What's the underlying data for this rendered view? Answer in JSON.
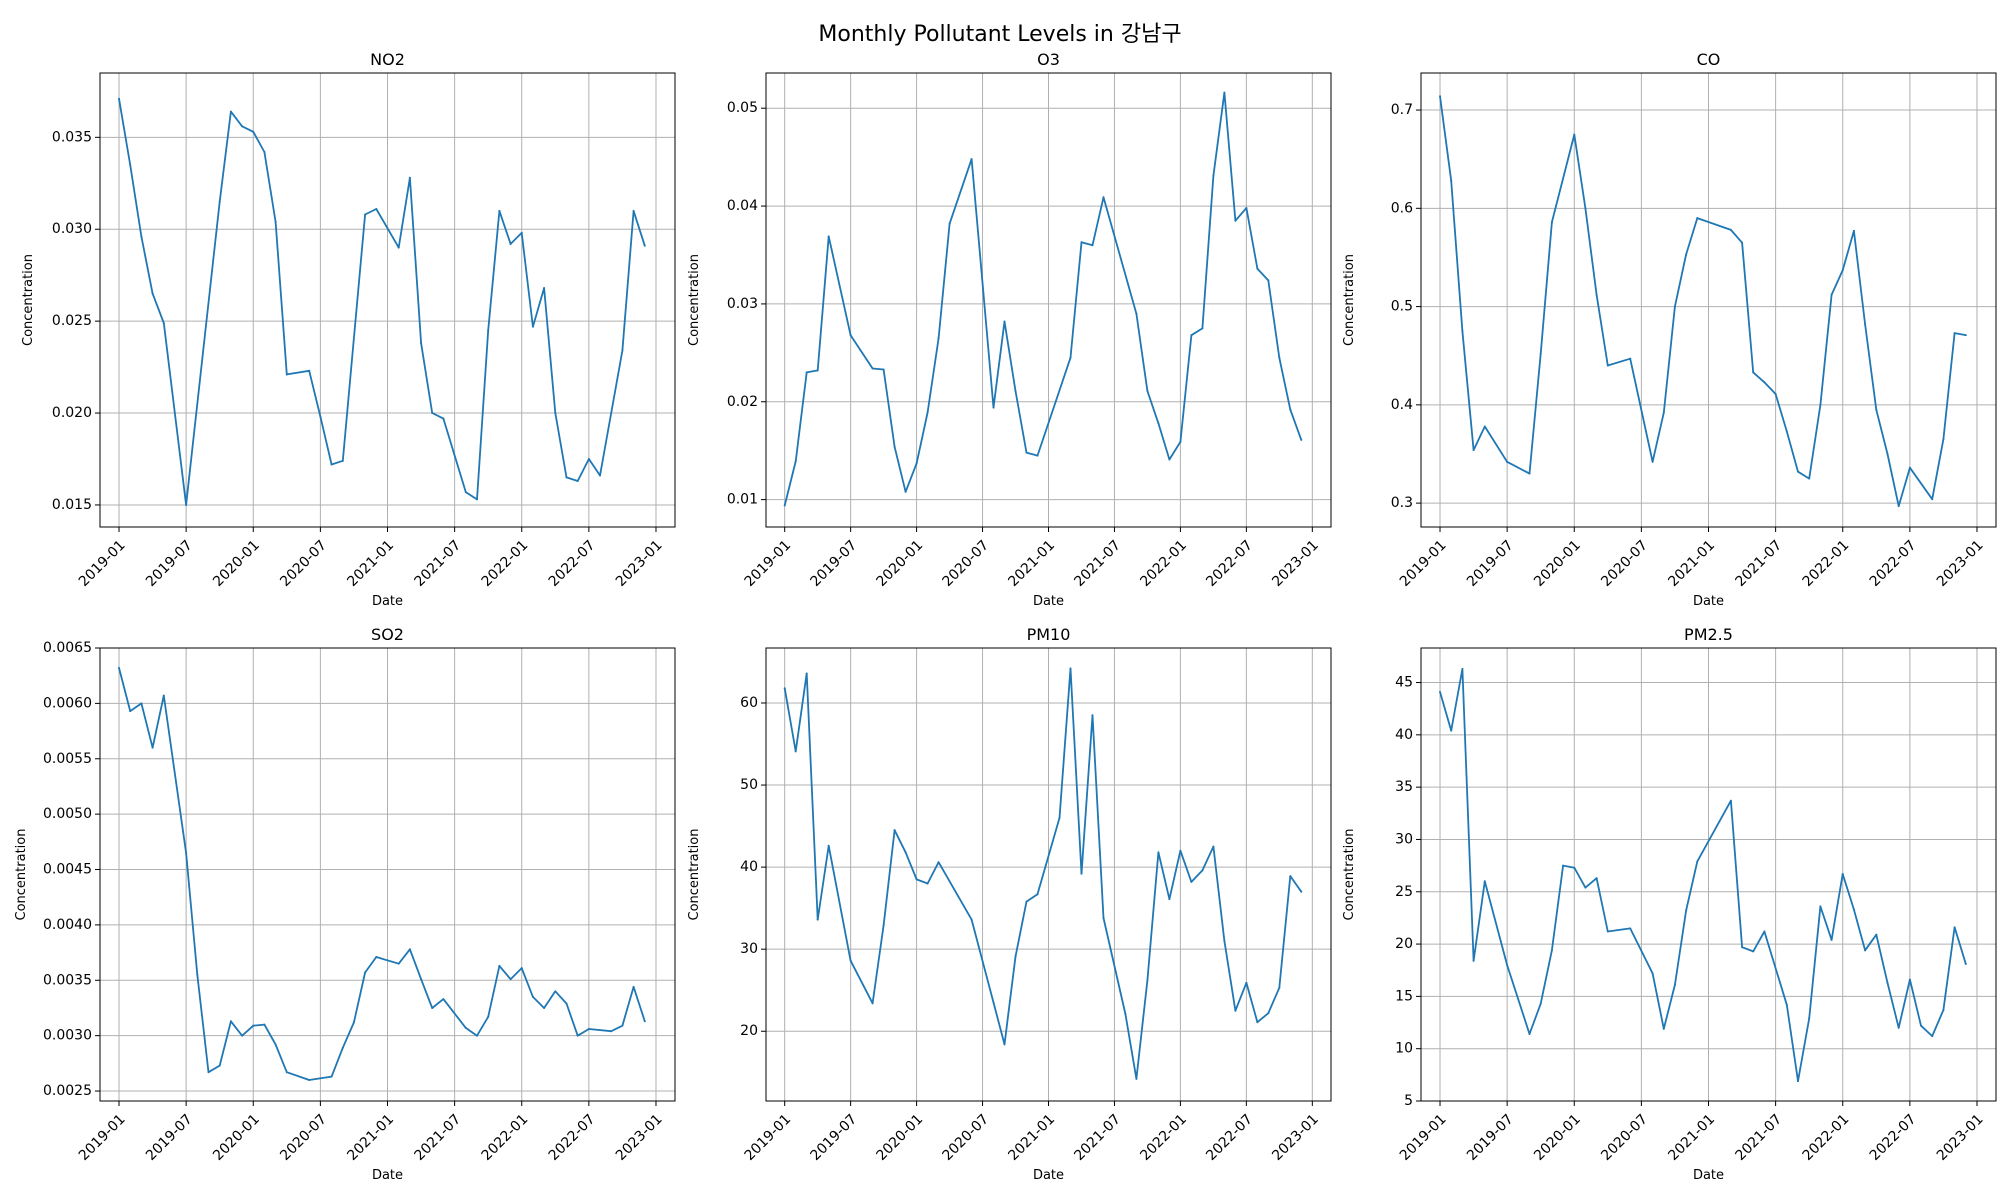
{
  "figure": {
    "title": "Monthly Pollutant Levels in 강남구"
  },
  "chart_data": [
    {
      "type": "line",
      "title": "NO2",
      "xlabel": "Date",
      "ylabel": "Concentration",
      "x_ticks": [
        "2019-01",
        "2019-07",
        "2020-01",
        "2020-07",
        "2021-01",
        "2021-07",
        "2022-01",
        "2022-07",
        "2023-01"
      ],
      "y_ticks": [
        0.015,
        0.02,
        0.025,
        0.03,
        0.035
      ],
      "y_tick_labels": [
        "0.015",
        "0.020",
        "0.025",
        "0.030",
        "0.035"
      ],
      "ylim": [
        0.0138,
        0.0385
      ],
      "grid": true,
      "color": "#1f77b4",
      "x": [
        "2019-01",
        "2019-02",
        "2019-03",
        "2019-04",
        "2019-05",
        "2019-07",
        "2019-10",
        "2019-11",
        "2019-12",
        "2020-01",
        "2020-02",
        "2020-03",
        "2020-04",
        "2020-06",
        "2020-07",
        "2020-08",
        "2020-09",
        "2020-11",
        "2020-12",
        "2021-02",
        "2021-03",
        "2021-04",
        "2021-05",
        "2021-06",
        "2021-08",
        "2021-09",
        "2021-10",
        "2021-11",
        "2021-12",
        "2022-01",
        "2022-02",
        "2022-03",
        "2022-04",
        "2022-05",
        "2022-06",
        "2022-07",
        "2022-08",
        "2022-10",
        "2022-11",
        "2022-12"
      ],
      "y": [
        0.0371,
        0.0335,
        0.0296,
        0.0265,
        0.0249,
        0.015,
        0.0315,
        0.0364,
        0.0356,
        0.0353,
        0.0342,
        0.0304,
        0.0221,
        0.0223,
        0.0198,
        0.0172,
        0.0174,
        0.0308,
        0.0311,
        0.029,
        0.0328,
        0.0238,
        0.02,
        0.0197,
        0.0157,
        0.0153,
        0.0245,
        0.031,
        0.0292,
        0.0298,
        0.0247,
        0.0268,
        0.02,
        0.0165,
        0.0163,
        0.0175,
        0.0166,
        0.0234,
        0.031,
        0.0291
      ]
    },
    {
      "type": "line",
      "title": "O3",
      "xlabel": "Date",
      "ylabel": "Concentration",
      "x_ticks": [
        "2019-01",
        "2019-07",
        "2020-01",
        "2020-07",
        "2021-01",
        "2021-07",
        "2022-01",
        "2022-07",
        "2023-01"
      ],
      "y_ticks": [
        0.01,
        0.02,
        0.03,
        0.04,
        0.05
      ],
      "y_tick_labels": [
        "0.01",
        "0.02",
        "0.03",
        "0.04",
        "0.05"
      ],
      "ylim": [
        0.0072,
        0.0536
      ],
      "grid": true,
      "color": "#1f77b4",
      "x": [
        "2019-01",
        "2019-02",
        "2019-03",
        "2019-04",
        "2019-05",
        "2019-07",
        "2019-09",
        "2019-10",
        "2019-11",
        "2019-12",
        "2020-01",
        "2020-02",
        "2020-03",
        "2020-04",
        "2020-06",
        "2020-08",
        "2020-09",
        "2020-10",
        "2020-11",
        "2020-12",
        "2021-03",
        "2021-04",
        "2021-05",
        "2021-06",
        "2021-09",
        "2021-10",
        "2021-11",
        "2021-12",
        "2022-01",
        "2022-02",
        "2022-03",
        "2022-04",
        "2022-05",
        "2022-06",
        "2022-07",
        "2022-08",
        "2022-09",
        "2022-10",
        "2022-11",
        "2022-12"
      ],
      "y": [
        0.0094,
        0.0139,
        0.023,
        0.0232,
        0.0369,
        0.0268,
        0.0234,
        0.0233,
        0.0154,
        0.0108,
        0.0137,
        0.0189,
        0.0265,
        0.0382,
        0.0448,
        0.0194,
        0.0282,
        0.0211,
        0.0148,
        0.0145,
        0.0245,
        0.0363,
        0.036,
        0.0409,
        0.029,
        0.0211,
        0.0178,
        0.0141,
        0.0159,
        0.0268,
        0.0275,
        0.0431,
        0.0516,
        0.0385,
        0.0398,
        0.0336,
        0.0324,
        0.0245,
        0.0192,
        0.0161
      ]
    },
    {
      "type": "line",
      "title": "CO",
      "xlabel": "Date",
      "ylabel": "Concentration",
      "x_ticks": [
        "2019-01",
        "2019-07",
        "2020-01",
        "2020-07",
        "2021-01",
        "2021-07",
        "2022-01",
        "2022-07",
        "2023-01"
      ],
      "y_ticks": [
        0.3,
        0.4,
        0.5,
        0.6,
        0.7
      ],
      "y_tick_labels": [
        "0.3",
        "0.4",
        "0.5",
        "0.6",
        "0.7"
      ],
      "ylim": [
        0.2757,
        0.7377
      ],
      "grid": true,
      "color": "#1f77b4",
      "x": [
        "2019-01",
        "2019-02",
        "2019-03",
        "2019-04",
        "2019-05",
        "2019-07",
        "2019-09",
        "2019-10",
        "2019-11",
        "2020-01",
        "2020-02",
        "2020-03",
        "2020-04",
        "2020-06",
        "2020-08",
        "2020-09",
        "2020-10",
        "2020-11",
        "2020-12",
        "2021-03",
        "2021-04",
        "2021-05",
        "2021-06",
        "2021-07",
        "2021-08",
        "2021-09",
        "2021-10",
        "2021-11",
        "2021-12",
        "2022-01",
        "2022-02",
        "2022-03",
        "2022-04",
        "2022-05",
        "2022-06",
        "2022-07",
        "2022-09",
        "2022-10",
        "2022-11",
        "2022-12"
      ],
      "y": [
        0.714,
        0.628,
        0.475,
        0.354,
        0.378,
        0.342,
        0.33,
        0.452,
        0.586,
        0.675,
        0.6,
        0.512,
        0.44,
        0.447,
        0.342,
        0.392,
        0.5,
        0.553,
        0.59,
        0.578,
        0.565,
        0.433,
        0.423,
        0.411,
        0.373,
        0.332,
        0.325,
        0.4,
        0.512,
        0.537,
        0.577,
        0.482,
        0.395,
        0.35,
        0.297,
        0.336,
        0.304,
        0.365,
        0.473,
        0.471
      ]
    },
    {
      "type": "line",
      "title": "SO2",
      "xlabel": "Date",
      "ylabel": "Concentration",
      "x_ticks": [
        "2019-01",
        "2019-07",
        "2020-01",
        "2020-07",
        "2021-01",
        "2021-07",
        "2022-01",
        "2022-07",
        "2023-01"
      ],
      "y_ticks": [
        0.0025,
        0.003,
        0.0035,
        0.004,
        0.0045,
        0.005,
        0.0055,
        0.006,
        0.0065
      ],
      "y_tick_labels": [
        "0.0025",
        "0.0030",
        "0.0035",
        "0.0040",
        "0.0045",
        "0.0050",
        "0.0055",
        "0.0060",
        "0.0065"
      ],
      "ylim": [
        0.00241,
        0.0065
      ],
      "grid": true,
      "color": "#1f77b4",
      "x": [
        "2019-01",
        "2019-02",
        "2019-03",
        "2019-04",
        "2019-05",
        "2019-07",
        "2019-08",
        "2019-09",
        "2019-10",
        "2019-11",
        "2019-12",
        "2020-01",
        "2020-02",
        "2020-03",
        "2020-04",
        "2020-06",
        "2020-08",
        "2020-09",
        "2020-10",
        "2020-11",
        "2020-12",
        "2021-02",
        "2021-03",
        "2021-04",
        "2021-05",
        "2021-06",
        "2021-08",
        "2021-09",
        "2021-10",
        "2021-11",
        "2021-12",
        "2022-01",
        "2022-02",
        "2022-03",
        "2022-04",
        "2022-05",
        "2022-06",
        "2022-07",
        "2022-09",
        "2022-10",
        "2022-11",
        "2022-12"
      ],
      "y": [
        0.00632,
        0.00593,
        0.006,
        0.0056,
        0.00607,
        0.00465,
        0.00355,
        0.00267,
        0.00273,
        0.00313,
        0.003,
        0.00309,
        0.0031,
        0.00292,
        0.00267,
        0.0026,
        0.00263,
        0.00289,
        0.00312,
        0.00357,
        0.00371,
        0.00365,
        0.00378,
        0.00351,
        0.00325,
        0.00333,
        0.00307,
        0.003,
        0.00317,
        0.00363,
        0.00351,
        0.00361,
        0.00335,
        0.00325,
        0.0034,
        0.00329,
        0.003,
        0.00306,
        0.00304,
        0.00309,
        0.00344,
        0.00313
      ]
    },
    {
      "type": "line",
      "title": "PM10",
      "xlabel": "Date",
      "ylabel": "Concentration",
      "x_ticks": [
        "2019-01",
        "2019-07",
        "2020-01",
        "2020-07",
        "2021-01",
        "2021-07",
        "2022-01",
        "2022-07",
        "2023-01"
      ],
      "y_ticks": [
        20,
        30,
        40,
        50,
        60
      ],
      "y_tick_labels": [
        "20",
        "30",
        "40",
        "50",
        "60"
      ],
      "ylim": [
        11.5,
        66.7
      ],
      "grid": true,
      "color": "#1f77b4",
      "x": [
        "2019-01",
        "2019-02",
        "2019-03",
        "2019-04",
        "2019-05",
        "2019-07",
        "2019-09",
        "2019-10",
        "2019-11",
        "2019-12",
        "2020-01",
        "2020-02",
        "2020-03",
        "2020-06",
        "2020-08",
        "2020-09",
        "2020-10",
        "2020-11",
        "2020-12",
        "2021-02",
        "2021-03",
        "2021-04",
        "2021-05",
        "2021-06",
        "2021-08",
        "2021-09",
        "2021-10",
        "2021-11",
        "2021-12",
        "2022-01",
        "2022-02",
        "2022-03",
        "2022-04",
        "2022-05",
        "2022-06",
        "2022-07",
        "2022-08",
        "2022-09",
        "2022-10",
        "2022-11",
        "2022-12"
      ],
      "y": [
        61.8,
        54.1,
        63.6,
        33.6,
        42.6,
        28.6,
        23.4,
        32.9,
        44.5,
        41.8,
        38.5,
        38.0,
        40.6,
        33.6,
        23.5,
        18.4,
        29.1,
        35.8,
        36.7,
        46.0,
        64.2,
        39.2,
        58.5,
        33.8,
        22.1,
        14.2,
        26.2,
        41.8,
        36.1,
        42.0,
        38.2,
        39.6,
        42.5,
        31.0,
        22.5,
        25.9,
        21.1,
        22.2,
        25.3,
        38.9,
        37.0
      ]
    },
    {
      "type": "line",
      "title": "PM2.5",
      "xlabel": "Date",
      "ylabel": "Concentration",
      "x_ticks": [
        "2019-01",
        "2019-07",
        "2020-01",
        "2020-07",
        "2021-01",
        "2021-07",
        "2022-01",
        "2022-07",
        "2023-01"
      ],
      "y_ticks": [
        5,
        10,
        15,
        20,
        25,
        30,
        35,
        40,
        45
      ],
      "y_tick_labels": [
        "5",
        "10",
        "15",
        "20",
        "25",
        "30",
        "35",
        "40",
        "45"
      ],
      "ylim": [
        5,
        48.3
      ],
      "grid": true,
      "color": "#1f77b4",
      "x": [
        "2019-01",
        "2019-02",
        "2019-03",
        "2019-04",
        "2019-05",
        "2019-07",
        "2019-09",
        "2019-10",
        "2019-11",
        "2019-12",
        "2020-01",
        "2020-02",
        "2020-03",
        "2020-04",
        "2020-06",
        "2020-08",
        "2020-09",
        "2020-10",
        "2020-11",
        "2020-12",
        "2021-03",
        "2021-04",
        "2021-05",
        "2021-06",
        "2021-08",
        "2021-09",
        "2021-10",
        "2021-11",
        "2021-12",
        "2022-01",
        "2022-02",
        "2022-03",
        "2022-04",
        "2022-05",
        "2022-06",
        "2022-07",
        "2022-08",
        "2022-09",
        "2022-10",
        "2022-11",
        "2022-12"
      ],
      "y": [
        44.1,
        40.4,
        46.3,
        18.4,
        26.0,
        18.0,
        11.4,
        14.3,
        19.4,
        27.5,
        27.3,
        25.4,
        26.3,
        21.2,
        21.5,
        17.2,
        11.9,
        16.1,
        23.2,
        27.9,
        33.7,
        19.7,
        19.3,
        21.2,
        14.2,
        6.9,
        12.9,
        23.6,
        20.4,
        26.7,
        23.3,
        19.4,
        20.9,
        16.3,
        12.0,
        16.6,
        12.2,
        11.2,
        13.7,
        21.6,
        18.1
      ]
    }
  ]
}
